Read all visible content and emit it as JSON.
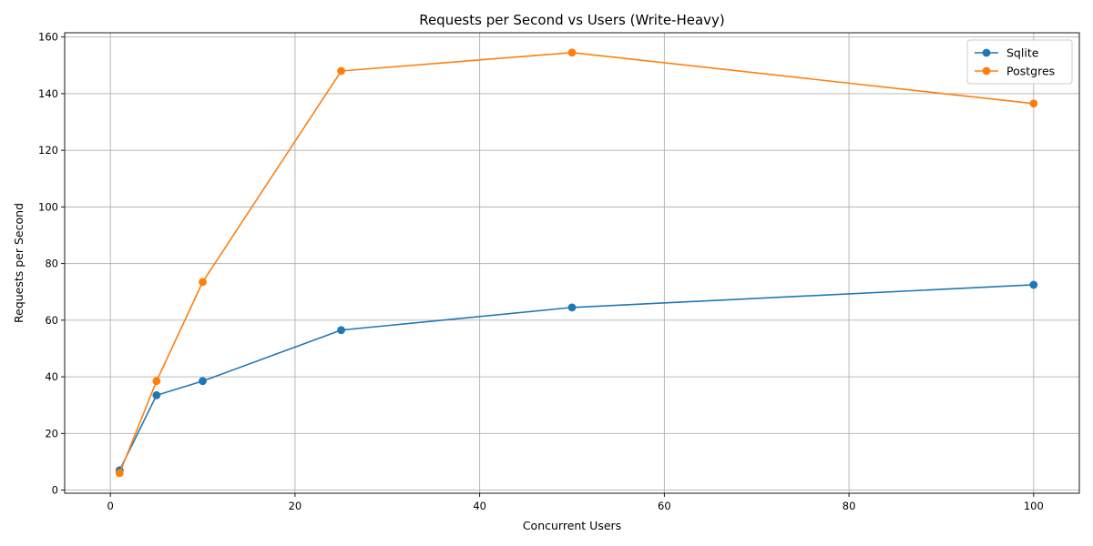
{
  "chart_data": {
    "type": "line",
    "title": "Requests per Second vs Users (Write-Heavy)",
    "xlabel": "Concurrent Users",
    "ylabel": "Requests per Second",
    "xlim": [
      -4.95,
      104.95
    ],
    "ylim": [
      -1.1,
      161.5
    ],
    "xticks": [
      0,
      20,
      40,
      60,
      80,
      100
    ],
    "yticks": [
      0,
      20,
      40,
      60,
      80,
      100,
      120,
      140,
      160
    ],
    "grid": true,
    "legend_position": "top-right",
    "x": [
      1,
      5,
      10,
      25,
      50,
      100
    ],
    "series": [
      {
        "name": "Sqlite",
        "color": "#1f77b4",
        "values": [
          7.0,
          33.5,
          38.5,
          56.5,
          64.5,
          72.5
        ]
      },
      {
        "name": "Postgres",
        "color": "#ff7f0e",
        "values": [
          6.0,
          38.5,
          73.5,
          148.0,
          154.5,
          136.5
        ]
      }
    ]
  }
}
